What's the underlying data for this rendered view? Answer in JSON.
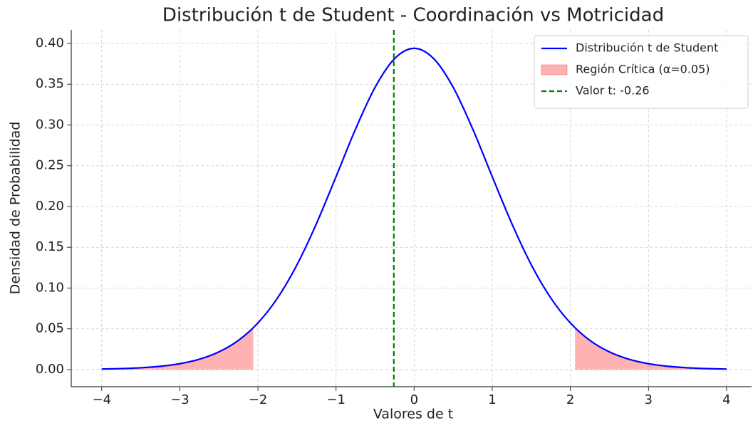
{
  "chart_data": {
    "type": "line",
    "title": "Distribución t de Student - Coordinación vs Motricidad",
    "xlabel": "Valores de t",
    "ylabel": "Densidad de Probabilidad",
    "xlim": [
      -4.39,
      4.32
    ],
    "ylim": [
      -0.021,
      0.4166
    ],
    "xticks": [
      {
        "value": -4,
        "label": "−4"
      },
      {
        "value": -3,
        "label": "−3"
      },
      {
        "value": -2,
        "label": "−2"
      },
      {
        "value": -1,
        "label": "−1"
      },
      0,
      1,
      2,
      3,
      4
    ],
    "yticks": [
      {
        "value": 0,
        "label": "0.00"
      },
      {
        "value": 0.05,
        "label": "0.05"
      },
      {
        "value": 0.1,
        "label": "0.10"
      },
      {
        "value": 0.15,
        "label": "0.15"
      },
      {
        "value": 0.2,
        "label": "0.20"
      },
      {
        "value": 0.25,
        "label": "0.25"
      },
      {
        "value": 0.3,
        "label": "0.30"
      },
      {
        "value": 0.35,
        "label": "0.35"
      },
      {
        "value": 0.4,
        "label": "0.40"
      }
    ],
    "grid": true,
    "legend": "upper right",
    "series": [
      {
        "name": "Distribución t de Student",
        "color": "#0000ff",
        "kind": "line",
        "x": [
          -4,
          -3.75,
          -3.5,
          -3.25,
          -3,
          -2.75,
          -2.5,
          -2.25,
          -2,
          -1.75,
          -1.5,
          -1.25,
          -1,
          -0.75,
          -0.5,
          -0.25,
          0,
          0.25,
          0.5,
          0.75,
          1,
          1.25,
          1.5,
          1.75,
          2,
          2.25,
          2.5,
          2.75,
          3,
          3.25,
          3.5,
          3.75,
          4
        ],
        "values": [
          0.0006,
          0.0012,
          0.0022,
          0.004,
          0.0072,
          0.0127,
          0.0217,
          0.0358,
          0.0572,
          0.0877,
          0.1285,
          0.1792,
          0.2366,
          0.295,
          0.3462,
          0.3814,
          0.394,
          0.3814,
          0.3462,
          0.295,
          0.2366,
          0.1792,
          0.1285,
          0.0877,
          0.0572,
          0.0358,
          0.0217,
          0.0127,
          0.0072,
          0.004,
          0.0022,
          0.0012,
          0.0006
        ]
      },
      {
        "name": "Región Crítica (α=0.05)",
        "color": "#ff0000",
        "kind": "area",
        "x": [
          -4,
          -3.75,
          -3.5,
          -3.25,
          -3,
          -2.75,
          -2.5,
          -2.25,
          -2.06,
          null,
          2.06,
          2.25,
          2.5,
          2.75,
          3,
          3.25,
          3.5,
          3.75,
          4
        ],
        "values": [
          0.0006,
          0.0012,
          0.0022,
          0.004,
          0.0072,
          0.0127,
          0.0217,
          0.0358,
          0.0513,
          null,
          0.0513,
          0.0358,
          0.0217,
          0.0127,
          0.0072,
          0.004,
          0.0022,
          0.0012,
          0.0006
        ]
      },
      {
        "name": "Valor t: -0.26",
        "color": "#008000",
        "kind": "vline",
        "x": -0.26
      }
    ]
  }
}
